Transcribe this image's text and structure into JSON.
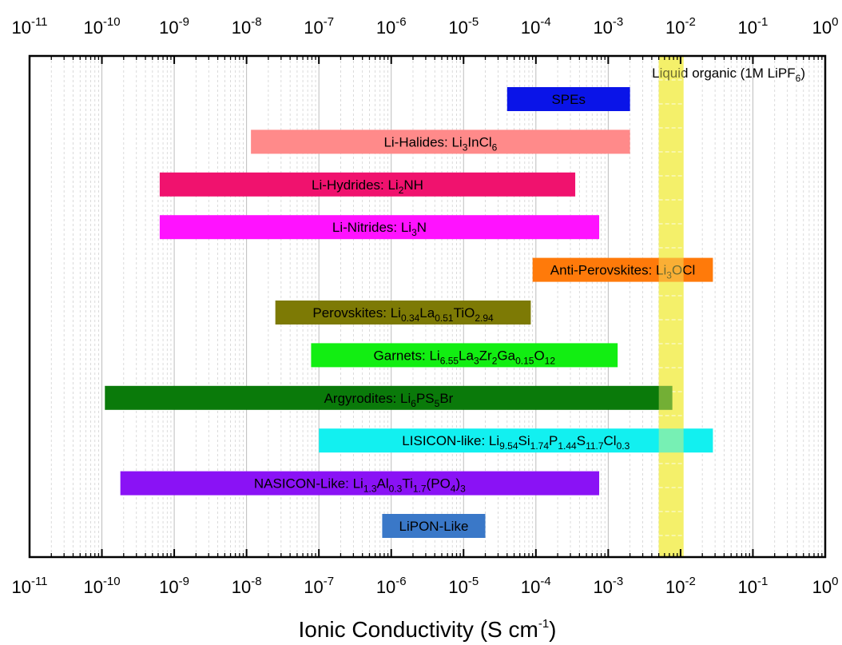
{
  "chart_data": {
    "type": "bar",
    "orientation": "horizontal",
    "x_scale": "log",
    "xlim": [
      1e-11,
      1
    ],
    "grid": true,
    "xlabel": {
      "main": "Ionic Conductivity (S cm",
      "sup": "-1",
      "tail": ")"
    },
    "tick_labels": [
      {
        "base": "10",
        "exp": "-11"
      },
      {
        "base": "10",
        "exp": "-10"
      },
      {
        "base": "10",
        "exp": "-9"
      },
      {
        "base": "10",
        "exp": "-8"
      },
      {
        "base": "10",
        "exp": "-7"
      },
      {
        "base": "10",
        "exp": "-6"
      },
      {
        "base": "10",
        "exp": "-5"
      },
      {
        "base": "10",
        "exp": "-4"
      },
      {
        "base": "10",
        "exp": "-3"
      },
      {
        "base": "10",
        "exp": "-2"
      },
      {
        "base": "10",
        "exp": "-1"
      },
      {
        "base": "10",
        "exp": "0"
      }
    ],
    "highlight": {
      "range": [
        0.005,
        0.011
      ],
      "color": "#f5f06a",
      "label": [
        {
          "t": "Liquid organic (1M LiPF"
        },
        {
          "t": "6",
          "s": "sub"
        },
        {
          "t": ")"
        }
      ]
    },
    "bars": [
      {
        "label": [
          {
            "t": "SPEs"
          }
        ],
        "range": [
          4e-05,
          0.002
        ],
        "color": "#0a14e8"
      },
      {
        "label": [
          {
            "t": "Li-Halides: Li"
          },
          {
            "t": "3",
            "s": "sub"
          },
          {
            "t": "InCl"
          },
          {
            "t": "6",
            "s": "sub"
          }
        ],
        "range": [
          1.15e-08,
          0.002
        ],
        "color": "#ff8a8a"
      },
      {
        "label": [
          {
            "t": "Li-Hydrides: Li"
          },
          {
            "t": "2",
            "s": "sub"
          },
          {
            "t": "NH"
          }
        ],
        "range": [
          6.3e-10,
          0.00035
        ],
        "color": "#f0126e"
      },
      {
        "label": [
          {
            "t": "Li-Nitrides: Li"
          },
          {
            "t": "3",
            "s": "sub"
          },
          {
            "t": "N"
          }
        ],
        "range": [
          6.3e-10,
          0.00075
        ],
        "color": "#ff12ff"
      },
      {
        "label": [
          {
            "t": "Anti-Perovskites: Li"
          },
          {
            "t": "3",
            "s": "sub"
          },
          {
            "t": "OCl"
          }
        ],
        "range": [
          9e-05,
          0.028
        ],
        "color": "#ff7a0a"
      },
      {
        "label": [
          {
            "t": "Perovskites: Li"
          },
          {
            "t": "0.34",
            "s": "sub"
          },
          {
            "t": "La"
          },
          {
            "t": "0.51",
            "s": "sub"
          },
          {
            "t": "TiO"
          },
          {
            "t": "2.94",
            "s": "sub"
          }
        ],
        "range": [
          2.5e-08,
          8.5e-05
        ],
        "color": "#7d7a05"
      },
      {
        "label": [
          {
            "t": "Garnets: Li"
          },
          {
            "t": "6.55",
            "s": "sub"
          },
          {
            "t": "La"
          },
          {
            "t": "3",
            "s": "sub"
          },
          {
            "t": "Zr"
          },
          {
            "t": "2",
            "s": "sub"
          },
          {
            "t": "Ga"
          },
          {
            "t": "0.15",
            "s": "sub"
          },
          {
            "t": "O"
          },
          {
            "t": "12",
            "s": "sub"
          }
        ],
        "range": [
          7.8e-08,
          0.00135
        ],
        "color": "#12ee12"
      },
      {
        "label": [
          {
            "t": "Argyrodites: Li"
          },
          {
            "t": "6",
            "s": "sub"
          },
          {
            "t": "PS"
          },
          {
            "t": "5",
            "s": "sub"
          },
          {
            "t": "Br"
          }
        ],
        "range": [
          1.1e-10,
          0.0077
        ],
        "color": "#0a7a0a"
      },
      {
        "label": [
          {
            "t": "LISICON-like: Li"
          },
          {
            "t": "9.54",
            "s": "sub"
          },
          {
            "t": "Si"
          },
          {
            "t": "1.74",
            "s": "sub"
          },
          {
            "t": "P"
          },
          {
            "t": "1.44",
            "s": "sub"
          },
          {
            "t": "S"
          },
          {
            "t": "11.7",
            "s": "sub"
          },
          {
            "t": "Cl"
          },
          {
            "t": "0.3",
            "s": "sub"
          }
        ],
        "range": [
          1e-07,
          0.028
        ],
        "color": "#12f0f0"
      },
      {
        "label": [
          {
            "t": "NASICON-Like: Li"
          },
          {
            "t": "1.3",
            "s": "sub"
          },
          {
            "t": "Al"
          },
          {
            "t": "0.3",
            "s": "sub"
          },
          {
            "t": "Ti"
          },
          {
            "t": "1.7",
            "s": "sub"
          },
          {
            "t": "(PO"
          },
          {
            "t": "4",
            "s": "sub"
          },
          {
            "t": ")"
          },
          {
            "t": "3",
            "s": "sub"
          }
        ],
        "range": [
          1.8e-10,
          0.00075
        ],
        "color": "#8a12f5"
      },
      {
        "label": [
          {
            "t": "LiPON-Like"
          }
        ],
        "range": [
          7.5e-07,
          2e-05
        ],
        "color": "#3a78c8"
      }
    ]
  }
}
